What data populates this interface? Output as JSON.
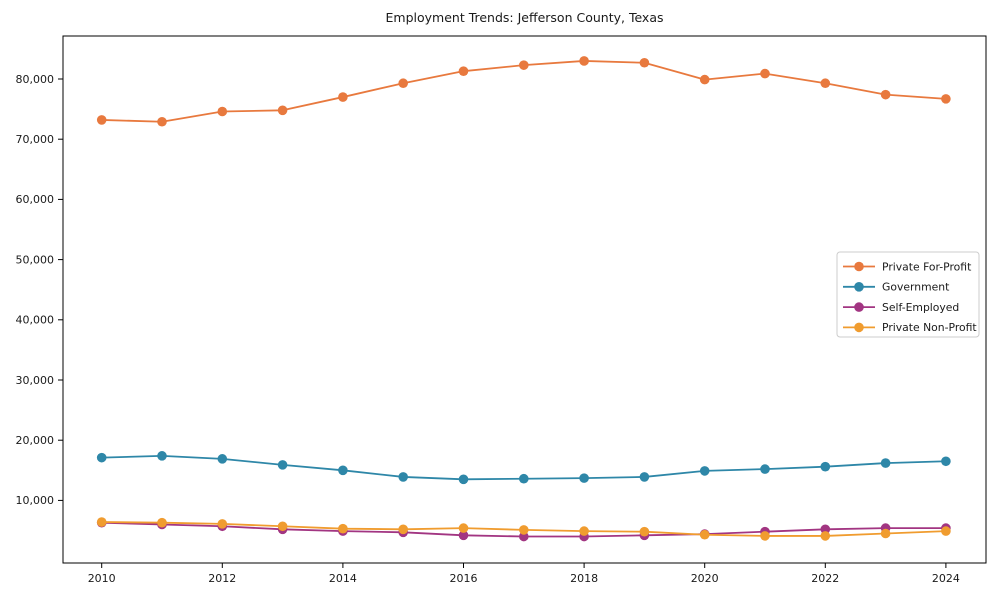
{
  "figure": {
    "title": "Employment Trends: Jefferson County, Texas"
  },
  "chart_data": {
    "type": "line",
    "title": "Employment Trends: Jefferson County, Texas",
    "xlabel": "",
    "ylabel": "",
    "grid": false,
    "x": [
      2010,
      2011,
      2012,
      2013,
      2014,
      2015,
      2016,
      2017,
      2018,
      2019,
      2020,
      2021,
      2022,
      2023,
      2024
    ],
    "xticks": [
      2010,
      2012,
      2014,
      2016,
      2018,
      2020,
      2022,
      2024
    ],
    "yticks": [
      10000,
      20000,
      30000,
      40000,
      50000,
      60000,
      70000,
      80000
    ],
    "ytick_labels": [
      "10,000",
      "20,000",
      "30,000",
      "40,000",
      "50,000",
      "60,000",
      "70,000",
      "80,000"
    ],
    "ylim": [
      -400,
      87100
    ],
    "xlim": [
      2009.35,
      2024.65
    ],
    "legend": {
      "position": "center right",
      "entries": [
        "Private For-Profit",
        "Government",
        "Self-Employed",
        "Private Non-Profit"
      ]
    },
    "series": [
      {
        "name": "Private For-Profit",
        "color": "#E8793E",
        "values": [
          73200,
          72900,
          74600,
          74800,
          77000,
          79300,
          81300,
          82300,
          83000,
          82700,
          79900,
          80900,
          79300,
          77400,
          76700
        ]
      },
      {
        "name": "Government",
        "color": "#2E87A8",
        "values": [
          17100,
          17400,
          16900,
          15900,
          15000,
          13900,
          13500,
          13600,
          13700,
          13900,
          14900,
          15200,
          15600,
          16200,
          16500
        ]
      },
      {
        "name": "Self-Employed",
        "color": "#A23582",
        "values": [
          6300,
          6000,
          5700,
          5200,
          4900,
          4700,
          4200,
          4000,
          4000,
          4200,
          4400,
          4800,
          5200,
          5400,
          5400
        ]
      },
      {
        "name": "Private Non-Profit",
        "color": "#F09C2F",
        "values": [
          6400,
          6300,
          6100,
          5700,
          5300,
          5200,
          5400,
          5100,
          4900,
          4800,
          4300,
          4100,
          4100,
          4500,
          4900
        ]
      }
    ],
    "axis_color": "#000000",
    "text_color": "#1a1a1a",
    "legend_border_color": "#cccccc",
    "background_color": "#ffffff"
  }
}
